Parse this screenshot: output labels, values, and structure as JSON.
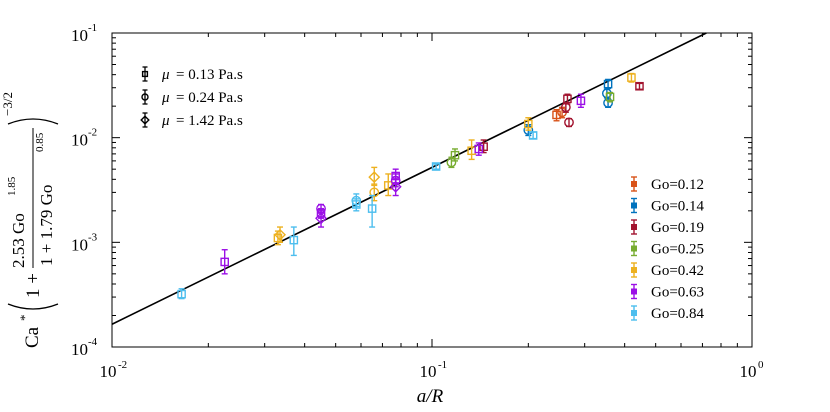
{
  "chart_data": {
    "type": "scatter",
    "xlabel": "a/R",
    "ylabel": "Ca*(1 + 2.53 Go^1.85 / (1 + 1.79 Go^0.85))^(-3/2)",
    "xscale": "log",
    "yscale": "log",
    "xlim": [
      0.01,
      1
    ],
    "ylim": [
      0.0001,
      0.1
    ],
    "grid": false,
    "x_ticks": [
      {
        "base": "10",
        "exp": "-2"
      },
      {
        "base": "10",
        "exp": "-1"
      },
      {
        "base": "10",
        "exp": "0"
      }
    ],
    "y_ticks": [
      {
        "base": "10",
        "exp": "-4"
      },
      {
        "base": "10",
        "exp": "-3"
      },
      {
        "base": "10",
        "exp": "-2"
      },
      {
        "base": "10",
        "exp": "-1"
      }
    ],
    "axis_label_parts": {
      "x": "a/R",
      "y_prefix": "Ca",
      "y_star": "*",
      "y_one_plus": "1 +",
      "y_num": "2.53 Go",
      "y_num_exp": "1.85",
      "y_den": "1 + 1.79 Go",
      "y_den_exp": "0.85",
      "y_outer_exp": "−3/2"
    },
    "fit_line": {
      "x": [
        0.01,
        0.72
      ],
      "y": [
        0.000165,
        0.1
      ]
    },
    "marker_legend": {
      "placement": "top-left",
      "entries": [
        {
          "marker": "square",
          "label_sym": "μ",
          "label_val": "= 0.13 Pa.s"
        },
        {
          "marker": "circle",
          "label_sym": "μ",
          "label_val": "= 0.24 Pa.s"
        },
        {
          "marker": "diamond",
          "label_sym": "μ",
          "label_val": "= 1.42 Pa.s"
        }
      ]
    },
    "series": [
      {
        "name": "Go=0.12",
        "color": "#D95319",
        "points": [
          {
            "x": 0.245,
            "y": 0.0165,
            "lo": 0.0145,
            "hi": 0.0185,
            "m": "square"
          },
          {
            "x": 0.255,
            "y": 0.0175,
            "lo": 0.0155,
            "hi": 0.0195,
            "m": "circle"
          }
        ]
      },
      {
        "name": "Go=0.14",
        "color": "#0072BD",
        "points": [
          {
            "x": 0.2,
            "y": 0.0118,
            "lo": 0.0105,
            "hi": 0.0133,
            "m": "circle"
          },
          {
            "x": 0.355,
            "y": 0.0325,
            "lo": 0.0295,
            "hi": 0.036,
            "m": "square"
          },
          {
            "x": 0.352,
            "y": 0.0265,
            "lo": 0.024,
            "hi": 0.029,
            "m": "circle"
          },
          {
            "x": 0.355,
            "y": 0.0215,
            "lo": 0.0195,
            "hi": 0.0235,
            "m": "circle"
          }
        ]
      },
      {
        "name": "Go=0.19",
        "color": "#A2142F",
        "points": [
          {
            "x": 0.145,
            "y": 0.0082,
            "lo": 0.0072,
            "hi": 0.0095,
            "m": "square"
          },
          {
            "x": 0.265,
            "y": 0.0235,
            "lo": 0.021,
            "hi": 0.026,
            "m": "square"
          },
          {
            "x": 0.262,
            "y": 0.0195,
            "lo": 0.0175,
            "hi": 0.0215,
            "m": "circle"
          },
          {
            "x": 0.268,
            "y": 0.014,
            "lo": 0.0128,
            "hi": 0.0152,
            "m": "circle"
          },
          {
            "x": 0.445,
            "y": 0.031,
            "lo": 0.029,
            "hi": 0.033,
            "m": "square"
          }
        ]
      },
      {
        "name": "Go=0.25",
        "color": "#77AC30",
        "points": [
          {
            "x": 0.118,
            "y": 0.0068,
            "lo": 0.006,
            "hi": 0.0078,
            "m": "square"
          },
          {
            "x": 0.115,
            "y": 0.0058,
            "lo": 0.0052,
            "hi": 0.0065,
            "m": "circle"
          },
          {
            "x": 0.36,
            "y": 0.0245,
            "lo": 0.022,
            "hi": 0.027,
            "m": "square"
          }
        ]
      },
      {
        "name": "Go=0.42",
        "color": "#EDB120",
        "points": [
          {
            "x": 0.033,
            "y": 0.0011,
            "lo": 0.00095,
            "hi": 0.00128,
            "m": "square"
          },
          {
            "x": 0.0335,
            "y": 0.00118,
            "lo": 0.001,
            "hi": 0.0014,
            "m": "diamond"
          },
          {
            "x": 0.066,
            "y": 0.0042,
            "lo": 0.0035,
            "hi": 0.0052,
            "m": "diamond"
          },
          {
            "x": 0.066,
            "y": 0.003,
            "lo": 0.0025,
            "hi": 0.0036,
            "m": "circle"
          },
          {
            "x": 0.073,
            "y": 0.0035,
            "lo": 0.0028,
            "hi": 0.0045,
            "m": "square"
          },
          {
            "x": 0.133,
            "y": 0.0075,
            "lo": 0.0062,
            "hi": 0.0095,
            "m": "square"
          },
          {
            "x": 0.2,
            "y": 0.0135,
            "lo": 0.0118,
            "hi": 0.0155,
            "m": "square"
          },
          {
            "x": 0.42,
            "y": 0.0375,
            "lo": 0.034,
            "hi": 0.041,
            "m": "square"
          }
        ]
      },
      {
        "name": "Go=0.63",
        "color": "#9B10E6",
        "points": [
          {
            "x": 0.0225,
            "y": 0.00065,
            "lo": 0.0005,
            "hi": 0.00085,
            "m": "square"
          },
          {
            "x": 0.045,
            "y": 0.0021,
            "lo": 0.0019,
            "hi": 0.0023,
            "m": "circle"
          },
          {
            "x": 0.045,
            "y": 0.0019,
            "lo": 0.0017,
            "hi": 0.0021,
            "m": "square"
          },
          {
            "x": 0.045,
            "y": 0.0017,
            "lo": 0.0014,
            "hi": 0.002,
            "m": "diamond"
          },
          {
            "x": 0.077,
            "y": 0.0043,
            "lo": 0.0037,
            "hi": 0.005,
            "m": "square"
          },
          {
            "x": 0.077,
            "y": 0.0039,
            "lo": 0.0034,
            "hi": 0.0045,
            "m": "circle"
          },
          {
            "x": 0.077,
            "y": 0.0034,
            "lo": 0.0028,
            "hi": 0.0041,
            "m": "diamond"
          },
          {
            "x": 0.14,
            "y": 0.0078,
            "lo": 0.0068,
            "hi": 0.0089,
            "m": "square"
          },
          {
            "x": 0.292,
            "y": 0.0225,
            "lo": 0.0195,
            "hi": 0.026,
            "m": "square"
          }
        ]
      },
      {
        "name": "Go=0.84",
        "color": "#4DBEEE",
        "points": [
          {
            "x": 0.0165,
            "y": 0.00032,
            "lo": 0.00029,
            "hi": 0.00036,
            "m": "square"
          },
          {
            "x": 0.037,
            "y": 0.00105,
            "lo": 0.00075,
            "hi": 0.0014,
            "m": "square"
          },
          {
            "x": 0.058,
            "y": 0.0025,
            "lo": 0.0022,
            "hi": 0.0029,
            "m": "circle"
          },
          {
            "x": 0.058,
            "y": 0.0023,
            "lo": 0.002,
            "hi": 0.0026,
            "m": "square"
          },
          {
            "x": 0.065,
            "y": 0.0021,
            "lo": 0.0014,
            "hi": 0.0028,
            "m": "square"
          },
          {
            "x": 0.103,
            "y": 0.0053,
            "lo": 0.005,
            "hi": 0.0056,
            "m": "square"
          },
          {
            "x": 0.207,
            "y": 0.0105,
            "lo": 0.0098,
            "hi": 0.0113,
            "m": "square"
          }
        ]
      }
    ]
  }
}
